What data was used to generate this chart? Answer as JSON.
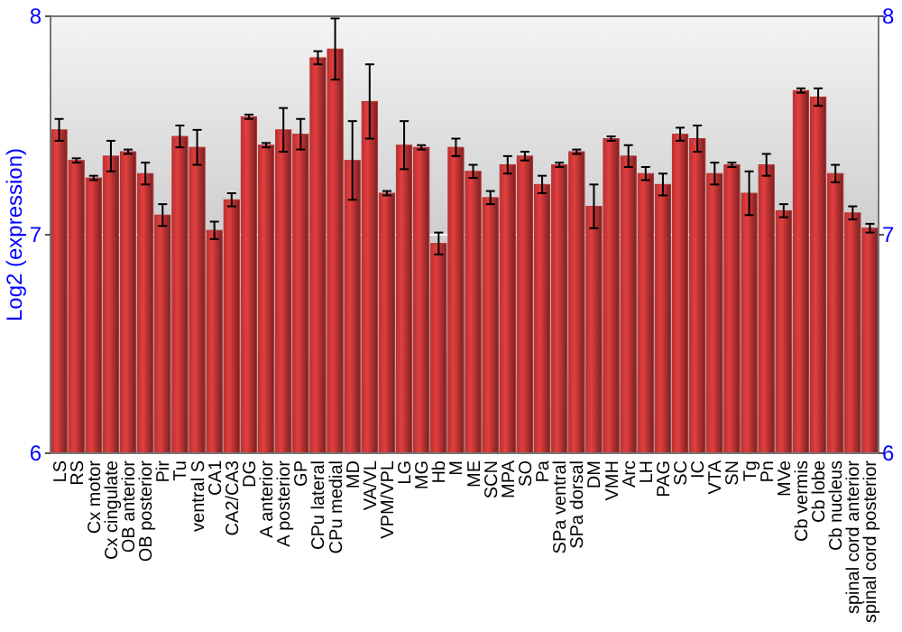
{
  "chart_data": {
    "type": "bar",
    "ylabel": "Log2 (expression)",
    "categories": [
      "LS",
      "RS",
      "Cx motor",
      "Cx cingulate",
      "OB anterior",
      "OB posterior",
      "Pir",
      "Tu",
      "ventral S",
      "CA1",
      "CA2/CA3",
      "DG",
      "A anterior",
      "A posterior",
      "GP",
      "CPu lateral",
      "CPu medial",
      "MD",
      "VA/VL",
      "VPM/VPL",
      "LG",
      "MG",
      "Hb",
      "M",
      "ME",
      "SCN",
      "MPA",
      "SO",
      "Pa",
      "SPa ventral",
      "SPa dorsal",
      "DM",
      "VMH",
      "Arc",
      "LH",
      "PAG",
      "SC",
      "IC",
      "VTA",
      "SN",
      "Tg",
      "Pn",
      "MVe",
      "Cb vermis",
      "Cb lobe",
      "Cb nucleus",
      "spinal cord anterior",
      "spinal cord posterior"
    ],
    "values": [
      7.48,
      7.34,
      7.26,
      7.36,
      7.38,
      7.28,
      7.09,
      7.45,
      7.4,
      7.02,
      7.16,
      7.54,
      7.41,
      7.48,
      7.46,
      7.81,
      7.85,
      7.34,
      7.61,
      7.19,
      7.41,
      7.4,
      6.96,
      7.4,
      7.29,
      7.17,
      7.32,
      7.36,
      7.23,
      7.32,
      7.38,
      7.13,
      7.44,
      7.36,
      7.28,
      7.23,
      7.46,
      7.44,
      7.28,
      7.32,
      7.19,
      7.32,
      7.11,
      7.66,
      7.63,
      7.28,
      7.1,
      7.03
    ],
    "errors": [
      0.05,
      0.01,
      0.01,
      0.07,
      0.01,
      0.05,
      0.05,
      0.05,
      0.08,
      0.04,
      0.03,
      0.01,
      0.01,
      0.1,
      0.07,
      0.03,
      0.14,
      0.18,
      0.17,
      0.01,
      0.11,
      0.01,
      0.05,
      0.04,
      0.03,
      0.03,
      0.04,
      0.02,
      0.04,
      0.01,
      0.01,
      0.1,
      0.01,
      0.05,
      0.03,
      0.05,
      0.03,
      0.06,
      0.05,
      0.01,
      0.1,
      0.05,
      0.03,
      0.01,
      0.04,
      0.04,
      0.03,
      0.02
    ],
    "color": "#b83232",
    "ylim": [
      6,
      8
    ],
    "yticks": [
      6,
      7,
      8
    ],
    "y2lim": [
      6,
      8
    ],
    "y2ticks": [
      6,
      7,
      8
    ],
    "grid": "y"
  }
}
